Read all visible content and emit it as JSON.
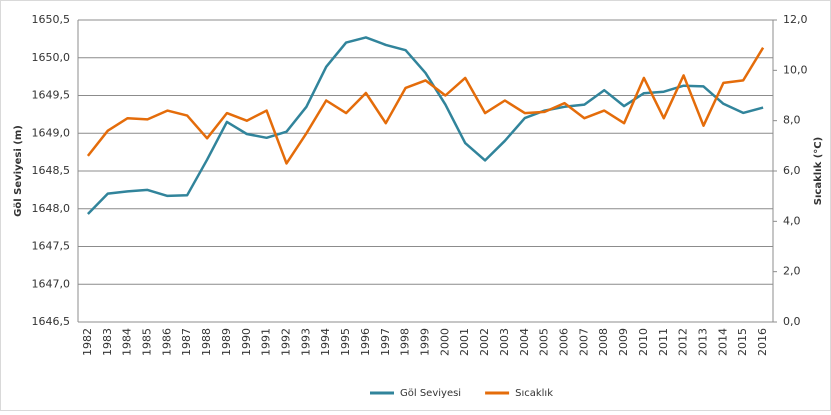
{
  "chart_data": {
    "type": "line",
    "categories": [
      "1982",
      "1983",
      "1984",
      "1985",
      "1986",
      "1987",
      "1988",
      "1989",
      "1990",
      "1991",
      "1992",
      "1993",
      "1994",
      "1995",
      "1996",
      "1997",
      "1998",
      "1999",
      "2000",
      "2001",
      "2002",
      "2003",
      "2004",
      "2005",
      "2006",
      "2007",
      "2008",
      "2009",
      "2010",
      "2011",
      "2012",
      "2013",
      "2014",
      "2015",
      "2016"
    ],
    "series": [
      {
        "name": "Göl Seviyesi",
        "color": "#31849b",
        "axis": "y",
        "values": [
          1647.93,
          1648.2,
          1648.23,
          1648.25,
          1648.17,
          1648.18,
          1648.65,
          1649.15,
          1648.99,
          1648.94,
          1649.02,
          1649.35,
          1649.88,
          1650.2,
          1650.27,
          1650.17,
          1650.1,
          1649.8,
          1649.38,
          1648.87,
          1648.64,
          1648.9,
          1649.2,
          1649.3,
          1649.35,
          1649.38,
          1649.57,
          1649.36,
          1649.53,
          1649.55,
          1649.63,
          1649.62,
          1649.39,
          1649.27,
          1649.34
        ]
      },
      {
        "name": "Sıcaklık",
        "color": "#e46c0a",
        "axis": "y2",
        "values": [
          6.6,
          7.6,
          8.1,
          8.05,
          8.4,
          8.2,
          7.3,
          8.3,
          8.0,
          8.4,
          6.3,
          7.5,
          8.8,
          8.3,
          9.1,
          7.9,
          9.3,
          9.6,
          9.0,
          9.7,
          8.3,
          8.8,
          8.3,
          8.35,
          8.7,
          8.1,
          8.4,
          7.9,
          9.7,
          8.1,
          9.8,
          7.8,
          9.5,
          9.6,
          10.9
        ]
      }
    ],
    "y_label": "Göl Seviyesi (m)",
    "y2_label": "Sıcaklık (°C)",
    "ylim": [
      1646.5,
      1650.5
    ],
    "yticks": [
      {
        "value": 1646.5,
        "label": "1646,5"
      },
      {
        "value": 1647,
        "label": "1647,0"
      },
      {
        "value": 1647.5,
        "label": "1647,5"
      },
      {
        "value": 1648,
        "label": "1648,0"
      },
      {
        "value": 1648.5,
        "label": "1648,5"
      },
      {
        "value": 1649,
        "label": "1649,0"
      },
      {
        "value": 1649.5,
        "label": "1649,5"
      },
      {
        "value": 1650,
        "label": "1650,0"
      },
      {
        "value": 1650.5,
        "label": "1650,5"
      }
    ],
    "y2lim": [
      0,
      12
    ],
    "y2ticks": [
      {
        "value": 0,
        "label": "0,0"
      },
      {
        "value": 2,
        "label": "2,0"
      },
      {
        "value": 4,
        "label": "4,0"
      },
      {
        "value": 6,
        "label": "6,0"
      },
      {
        "value": 8,
        "label": "8,0"
      },
      {
        "value": 10,
        "label": "10,0"
      },
      {
        "value": 12,
        "label": "12,0"
      }
    ],
    "grid": true,
    "legend": "bottom"
  }
}
